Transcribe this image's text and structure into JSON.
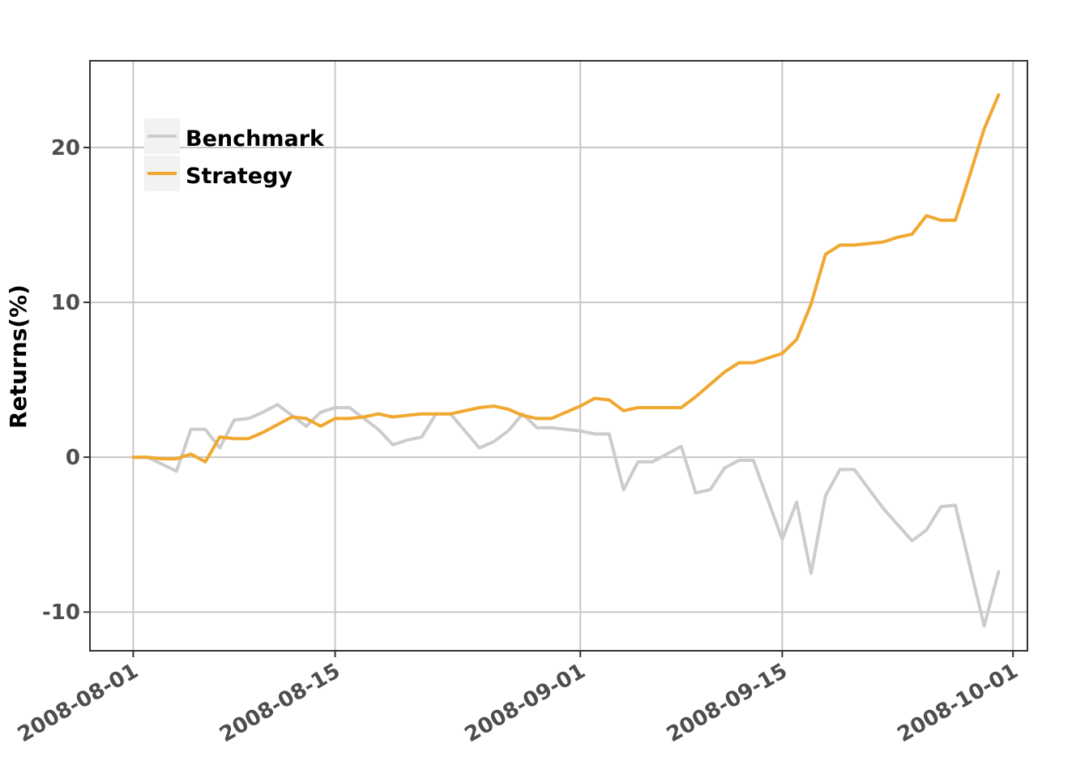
{
  "chart_data": {
    "type": "line",
    "title": "",
    "xlabel": "",
    "ylabel": "Returns(%)",
    "ylim": [
      -12.5,
      25.6
    ],
    "xlim": [
      "2008-07-29",
      "2008-10-02"
    ],
    "yticks": [
      -10,
      0,
      10,
      20
    ],
    "ytick_labels": [
      "-10",
      "0",
      "10",
      "20"
    ],
    "xticks": [
      "2008-08-01",
      "2008-08-15",
      "2008-09-01",
      "2008-09-15",
      "2008-10-01"
    ],
    "xtick_labels": [
      "2008-08-01",
      "2008-08-15",
      "2008-09-01",
      "2008-09-15",
      "2008-10-01"
    ],
    "grid": true,
    "legend_position": "top-left",
    "series": [
      {
        "name": "Benchmark",
        "color": "#cccccc",
        "x": [
          "2008-08-01",
          "2008-08-02",
          "2008-08-04",
          "2008-08-05",
          "2008-08-06",
          "2008-08-07",
          "2008-08-08",
          "2008-08-09",
          "2008-08-10",
          "2008-08-11",
          "2008-08-13",
          "2008-08-14",
          "2008-08-15",
          "2008-08-16",
          "2008-08-18",
          "2008-08-19",
          "2008-08-20",
          "2008-08-21",
          "2008-08-22",
          "2008-08-23",
          "2008-08-25",
          "2008-08-26",
          "2008-08-27",
          "2008-08-28",
          "2008-08-29",
          "2008-08-30",
          "2008-09-01",
          "2008-09-02",
          "2008-09-03",
          "2008-09-04",
          "2008-09-05",
          "2008-09-06",
          "2008-09-07",
          "2008-09-08",
          "2008-09-09",
          "2008-09-10",
          "2008-09-11",
          "2008-09-12",
          "2008-09-13",
          "2008-09-15",
          "2008-09-16",
          "2008-09-17",
          "2008-09-18",
          "2008-09-19",
          "2008-09-20",
          "2008-09-22",
          "2008-09-24",
          "2008-09-25",
          "2008-09-26",
          "2008-09-27",
          "2008-09-29",
          "2008-09-30"
        ],
        "values": [
          0.0,
          0.0,
          -0.9,
          1.8,
          1.8,
          0.6,
          2.4,
          2.5,
          2.9,
          3.4,
          2.0,
          2.9,
          3.2,
          3.2,
          1.8,
          0.8,
          1.1,
          1.3,
          2.8,
          2.8,
          0.6,
          1.0,
          1.7,
          2.8,
          1.9,
          1.9,
          1.7,
          1.5,
          1.5,
          -2.1,
          -0.3,
          -0.3,
          0.2,
          0.7,
          -2.3,
          -2.1,
          -0.7,
          -0.2,
          -0.2,
          -5.3,
          -2.9,
          -7.5,
          -2.5,
          -0.8,
          -0.8,
          -3.3,
          -5.4,
          -4.7,
          -3.2,
          -3.1,
          -10.9,
          -7.4
        ]
      },
      {
        "name": "Strategy",
        "color": "#f0a830",
        "x": [
          "2008-08-01",
          "2008-08-02",
          "2008-08-03",
          "2008-08-04",
          "2008-08-05",
          "2008-08-06",
          "2008-08-07",
          "2008-08-08",
          "2008-08-09",
          "2008-08-10",
          "2008-08-11",
          "2008-08-12",
          "2008-08-13",
          "2008-08-14",
          "2008-08-15",
          "2008-08-16",
          "2008-08-17",
          "2008-08-18",
          "2008-08-19",
          "2008-08-20",
          "2008-08-21",
          "2008-08-22",
          "2008-08-23",
          "2008-08-24",
          "2008-08-25",
          "2008-08-26",
          "2008-08-27",
          "2008-08-28",
          "2008-08-29",
          "2008-08-30",
          "2008-08-31",
          "2008-09-01",
          "2008-09-02",
          "2008-09-03",
          "2008-09-04",
          "2008-09-05",
          "2008-09-06",
          "2008-09-07",
          "2008-09-08",
          "2008-09-09",
          "2008-09-10",
          "2008-09-11",
          "2008-09-12",
          "2008-09-13",
          "2008-09-14",
          "2008-09-15",
          "2008-09-16",
          "2008-09-17",
          "2008-09-18",
          "2008-09-19",
          "2008-09-20",
          "2008-09-21",
          "2008-09-22",
          "2008-09-23",
          "2008-09-24",
          "2008-09-25",
          "2008-09-26",
          "2008-09-27",
          "2008-09-28",
          "2008-09-29",
          "2008-09-30"
        ],
        "values": [
          0.0,
          0.0,
          -0.1,
          -0.1,
          0.2,
          -0.3,
          1.3,
          1.2,
          1.2,
          1.6,
          2.1,
          2.6,
          2.5,
          2.0,
          2.5,
          2.5,
          2.6,
          2.8,
          2.6,
          2.7,
          2.8,
          2.8,
          2.8,
          3.0,
          3.2,
          3.3,
          3.1,
          2.7,
          2.5,
          2.5,
          2.9,
          3.3,
          3.8,
          3.7,
          3.0,
          3.2,
          3.2,
          3.2,
          3.2,
          3.9,
          4.7,
          5.5,
          6.1,
          6.1,
          6.4,
          6.7,
          7.6,
          9.9,
          13.1,
          13.7,
          13.7,
          13.8,
          13.9,
          14.2,
          14.4,
          15.6,
          15.3,
          15.3,
          18.2,
          21.2,
          23.4
        ]
      }
    ]
  }
}
